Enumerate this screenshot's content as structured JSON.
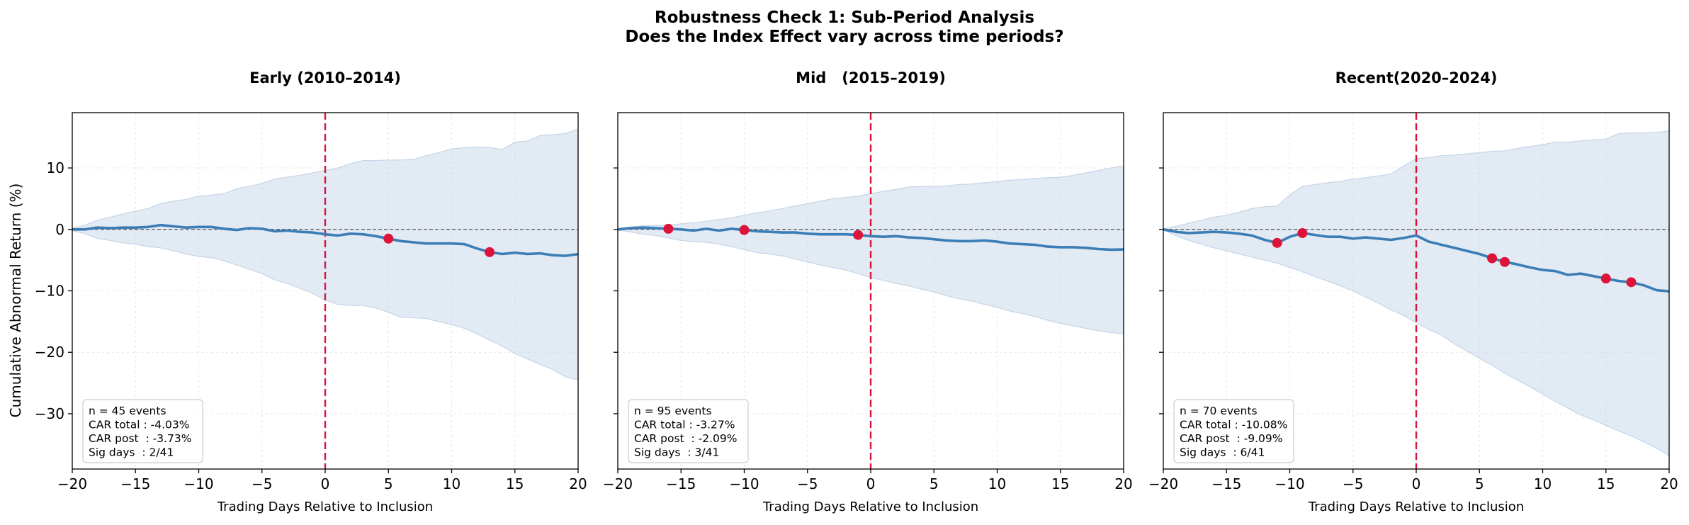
{
  "figure": {
    "title_line1": "Robustness Check 1: Sub-Period Analysis",
    "title_line2": "Does the Index Effect vary across time periods?",
    "ylabel": "Cumulative Abnormal Return (%)",
    "colors": {
      "car_line": "#3b7db5",
      "ci_band": "#c5d6e8",
      "event_line": "#dc143c",
      "sig_marker": "#dc143c",
      "zero_line": "#555555"
    }
  },
  "chart_data": [
    {
      "type": "line",
      "title": "Early (2010–2014)",
      "xlabel": "Trading Days Relative to Inclusion",
      "ylabel": "Cumulative Abnormal Return (%)",
      "xlim": [
        -20,
        20
      ],
      "ylim": [
        -39,
        19
      ],
      "xticks": [
        "−20",
        "−15",
        "−10",
        "−5",
        "0",
        "5",
        "10",
        "15",
        "20"
      ],
      "yticks": [
        "10",
        "0",
        "−10",
        "−20",
        "−30"
      ],
      "grid": true,
      "x": [
        -20,
        -19,
        -18,
        -17,
        -16,
        -15,
        -14,
        -13,
        -12,
        -11,
        -10,
        -9,
        -8,
        -7,
        -6,
        -5,
        -4,
        -3,
        -2,
        -1,
        0,
        1,
        2,
        3,
        4,
        5,
        6,
        7,
        8,
        9,
        10,
        11,
        12,
        13,
        14,
        15,
        16,
        17,
        18,
        19,
        20
      ],
      "series": [
        {
          "values": [
            0,
            0,
            0.3,
            0.2,
            0.3,
            0.3,
            0.4,
            0.7,
            0.5,
            0.3,
            0.4,
            0.4,
            0.1,
            -0.1,
            0.2,
            0.1,
            -0.3,
            -0.2,
            -0.4,
            -0.5,
            -0.8,
            -1.0,
            -0.7,
            -0.8,
            -1.1,
            -1.5,
            -1.9,
            -2.1,
            -2.3,
            -2.3,
            -2.3,
            -2.4,
            -3.1,
            -3.7,
            -4.0,
            -3.8,
            -4.0,
            -3.9,
            -4.2,
            -4.3,
            -4.03
          ]
        }
      ],
      "ci_upper": [
        0.2,
        0.7,
        1.5,
        2.0,
        2.5,
        3.0,
        3.4,
        4.2,
        4.6,
        4.9,
        5.4,
        5.6,
        5.8,
        6.6,
        7.0,
        7.5,
        8.2,
        8.5,
        8.8,
        9.2,
        9.6,
        10.0,
        10.7,
        11.2,
        11.2,
        11.3,
        11.3,
        11.4,
        12.0,
        12.5,
        13.1,
        13.3,
        13.4,
        13.3,
        13.0,
        14.2,
        14.4,
        15.3,
        15.4,
        15.6,
        16.3
      ],
      "ci_lower": [
        -0.2,
        -0.7,
        -1.5,
        -1.8,
        -2.2,
        -2.4,
        -2.8,
        -3.0,
        -3.5,
        -4.0,
        -4.4,
        -4.6,
        -5.1,
        -5.8,
        -6.5,
        -7.2,
        -8.2,
        -8.8,
        -9.6,
        -10.4,
        -11.5,
        -12.2,
        -12.4,
        -12.4,
        -12.8,
        -13.5,
        -14.3,
        -14.4,
        -14.5,
        -15.0,
        -15.5,
        -16.1,
        -17.0,
        -18.0,
        -19.0,
        -20.2,
        -21.1,
        -22.0,
        -22.8,
        -24.0,
        -24.5
      ],
      "significant_days": [
        5,
        13
      ],
      "stats_box": [
        "n = 45 events",
        "CAR total : -4.03%",
        "CAR post  : -3.73%",
        "Sig days  : 2/41"
      ]
    },
    {
      "type": "line",
      "title": "Mid   (2015–2019)",
      "xlabel": "Trading Days Relative to Inclusion",
      "ylabel": "",
      "xlim": [
        -20,
        20
      ],
      "ylim": [
        -39,
        19
      ],
      "xticks": [
        "−20",
        "−15",
        "−10",
        "−5",
        "0",
        "5",
        "10",
        "15",
        "20"
      ],
      "yticks": [],
      "grid": true,
      "x": [
        -20,
        -19,
        -18,
        -17,
        -16,
        -15,
        -14,
        -13,
        -12,
        -11,
        -10,
        -9,
        -8,
        -7,
        -6,
        -5,
        -4,
        -3,
        -2,
        -1,
        0,
        1,
        2,
        3,
        4,
        5,
        6,
        7,
        8,
        9,
        10,
        11,
        12,
        13,
        14,
        15,
        16,
        17,
        18,
        19,
        20
      ],
      "series": [
        {
          "values": [
            0,
            0.2,
            0.3,
            0.2,
            0.1,
            0,
            -0.2,
            0.1,
            -0.2,
            0.1,
            -0.1,
            -0.3,
            -0.4,
            -0.5,
            -0.5,
            -0.7,
            -0.8,
            -0.8,
            -0.8,
            -0.9,
            -1.1,
            -1.2,
            -1.1,
            -1.3,
            -1.4,
            -1.6,
            -1.8,
            -1.9,
            -1.9,
            -1.8,
            -2.0,
            -2.3,
            -2.4,
            -2.5,
            -2.8,
            -2.9,
            -2.9,
            -3.0,
            -3.2,
            -3.3,
            -3.27
          ]
        }
      ],
      "ci_upper": [
        0.1,
        0.4,
        0.6,
        0.6,
        0.7,
        0.9,
        1.1,
        1.3,
        1.6,
        1.9,
        2.3,
        2.7,
        3.0,
        3.4,
        3.8,
        4.2,
        4.6,
        5.0,
        5.2,
        5.4,
        5.8,
        6.2,
        6.5,
        6.9,
        7.0,
        7.0,
        7.1,
        7.3,
        7.4,
        7.6,
        7.8,
        8.0,
        8.1,
        8.3,
        8.4,
        8.5,
        8.8,
        9.2,
        9.6,
        10.0,
        10.3
      ],
      "ci_lower": [
        -0.1,
        -0.4,
        -0.8,
        -1.0,
        -1.4,
        -1.8,
        -2.0,
        -2.1,
        -2.4,
        -2.8,
        -3.3,
        -3.8,
        -4.0,
        -4.3,
        -4.8,
        -5.3,
        -5.8,
        -6.2,
        -6.6,
        -7.2,
        -7.8,
        -8.3,
        -8.8,
        -9.2,
        -9.7,
        -10.2,
        -10.8,
        -11.3,
        -11.7,
        -12.2,
        -12.7,
        -13.3,
        -13.7,
        -14.2,
        -14.8,
        -15.3,
        -15.7,
        -16.1,
        -16.5,
        -16.8,
        -17.0
      ],
      "significant_days": [
        -16,
        -10,
        -1
      ],
      "stats_box": [
        "n = 95 events",
        "CAR total : -3.27%",
        "CAR post  : -2.09%",
        "Sig days  : 3/41"
      ]
    },
    {
      "type": "line",
      "title": "Recent(2020–2024)",
      "xlabel": "Trading Days Relative to Inclusion",
      "ylabel": "",
      "xlim": [
        -20,
        20
      ],
      "ylim": [
        -39,
        19
      ],
      "xticks": [
        "−20",
        "−15",
        "−10",
        "−5",
        "0",
        "5",
        "10",
        "15",
        "20"
      ],
      "yticks": [],
      "grid": true,
      "x": [
        -20,
        -19,
        -18,
        -17,
        -16,
        -15,
        -14,
        -13,
        -12,
        -11,
        -10,
        -9,
        -8,
        -7,
        -6,
        -5,
        -4,
        -3,
        -2,
        -1,
        0,
        1,
        2,
        3,
        4,
        5,
        6,
        7,
        8,
        9,
        10,
        11,
        12,
        13,
        14,
        15,
        16,
        17,
        18,
        19,
        20
      ],
      "series": [
        {
          "values": [
            0,
            -0.4,
            -0.6,
            -0.5,
            -0.4,
            -0.5,
            -0.7,
            -1.0,
            -1.7,
            -2.2,
            -1.2,
            -0.6,
            -0.9,
            -1.2,
            -1.2,
            -1.5,
            -1.3,
            -1.5,
            -1.7,
            -1.4,
            -1.0,
            -2.0,
            -2.5,
            -3.0,
            -3.5,
            -4.0,
            -4.7,
            -5.3,
            -5.7,
            -6.2,
            -6.6,
            -6.8,
            -7.4,
            -7.2,
            -7.6,
            -8.0,
            -8.4,
            -8.6,
            -9.1,
            -9.9,
            -10.08
          ]
        }
      ],
      "ci_upper": [
        0.1,
        0.5,
        1.0,
        1.5,
        2.0,
        2.3,
        2.8,
        3.4,
        3.7,
        3.8,
        5.6,
        7.0,
        7.3,
        7.6,
        7.8,
        8.2,
        8.4,
        8.7,
        9.0,
        10.3,
        11.5,
        11.7,
        12.0,
        12.1,
        12.3,
        12.5,
        12.7,
        12.8,
        13.2,
        13.5,
        13.8,
        14.2,
        14.2,
        14.4,
        14.6,
        14.7,
        15.6,
        15.7,
        15.7,
        15.8,
        16.0
      ],
      "ci_lower": [
        -0.1,
        -1.0,
        -1.8,
        -2.4,
        -3.0,
        -3.5,
        -4.0,
        -4.5,
        -5.0,
        -5.5,
        -6.2,
        -6.9,
        -7.7,
        -8.4,
        -9.2,
        -10.0,
        -11.0,
        -12.0,
        -13.1,
        -14.0,
        -15.2,
        -16.3,
        -17.2,
        -18.6,
        -19.8,
        -21.0,
        -22.1,
        -23.4,
        -24.5,
        -25.6,
        -26.8,
        -28.0,
        -29.1,
        -30.2,
        -31.0,
        -31.9,
        -32.8,
        -33.6,
        -34.6,
        -35.6,
        -36.8
      ],
      "significant_days": [
        -11,
        -9,
        6,
        7,
        15,
        17
      ],
      "stats_box": [
        "n = 70 events",
        "CAR total : -10.08%",
        "CAR post  : -9.09%",
        "Sig days  : 6/41"
      ]
    }
  ]
}
